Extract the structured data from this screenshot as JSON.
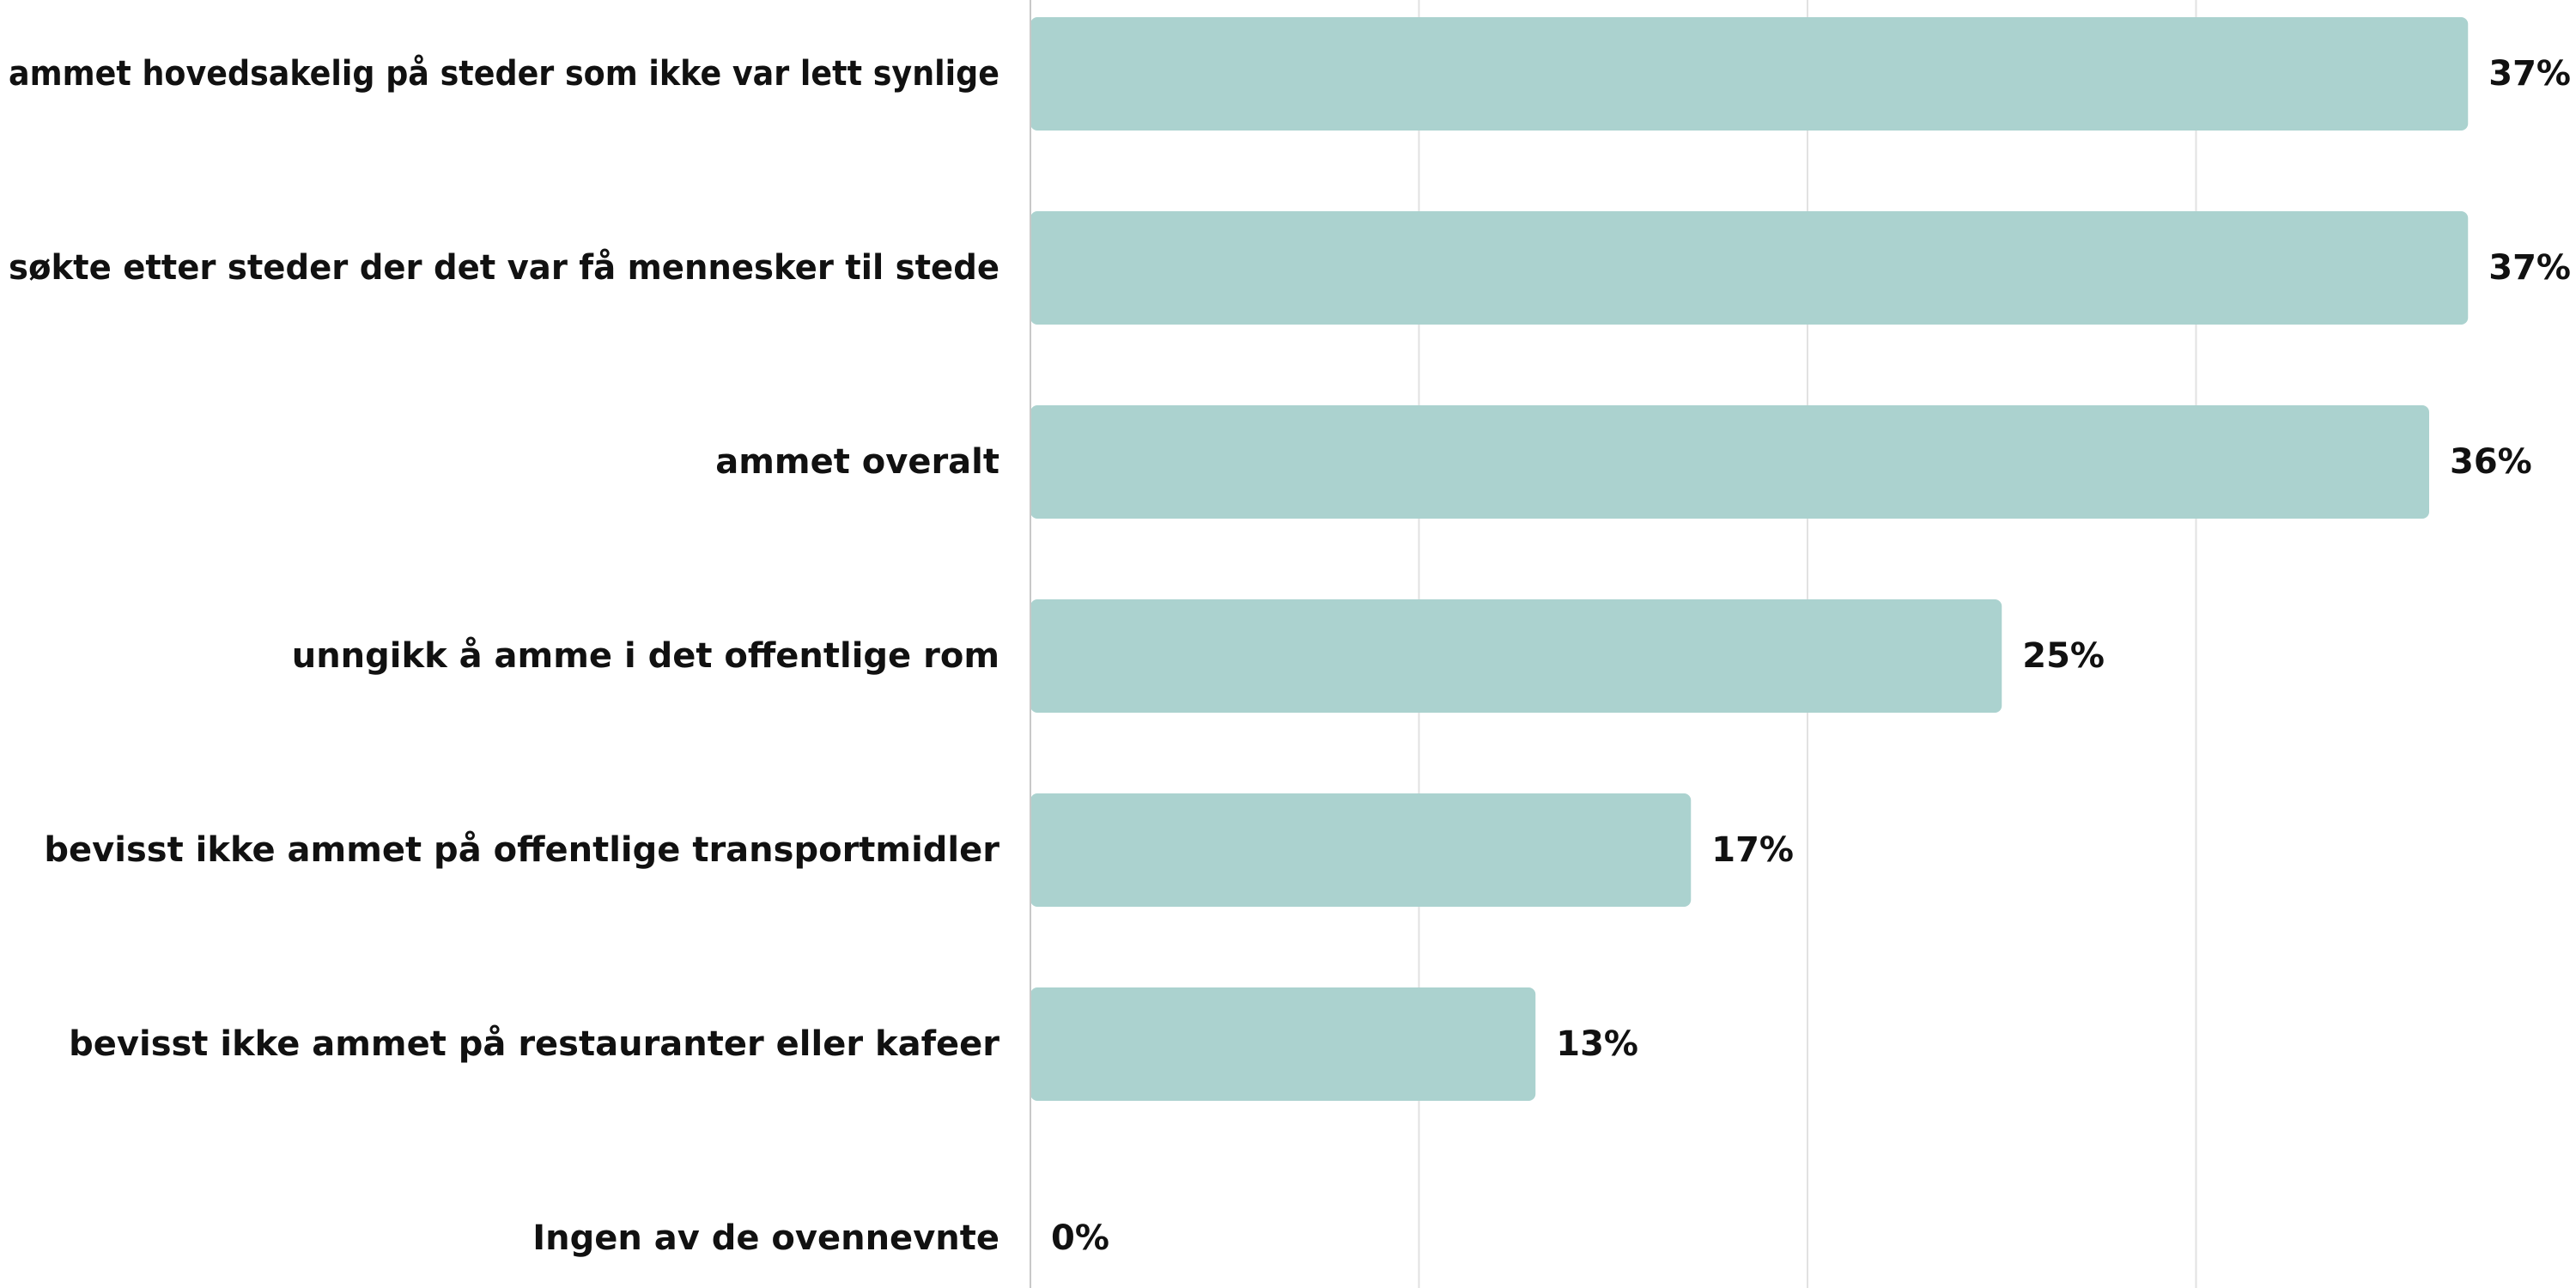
{
  "colors": {
    "bar": "#abd2cf",
    "grid": "#e2e2e2",
    "axis": "#c8c8c8",
    "text": "#111111",
    "background": "#ffffff"
  },
  "chart_data": {
    "type": "bar",
    "orientation": "horizontal",
    "title": "",
    "xlabel": "",
    "ylabel": "",
    "categories": [
      "ammet hovedsakelig på steder som ikke var lett synlige",
      "søkte etter steder der det var få mennesker til stede",
      "ammet overalt",
      "unngikk å amme i det offentlige rom",
      "bevisst ikke ammet på offentlige transportmidler",
      "bevisst ikke ammet på restauranter eller kafeer",
      "Ingen av de ovennevnte"
    ],
    "values": [
      37,
      37,
      36,
      25,
      17,
      13,
      0
    ],
    "value_labels": [
      "37%",
      "37%",
      "36%",
      "25%",
      "17%",
      "13%",
      "0%"
    ],
    "unit": "%",
    "xlim": [
      0,
      40
    ],
    "grid": true,
    "legend": "none"
  }
}
